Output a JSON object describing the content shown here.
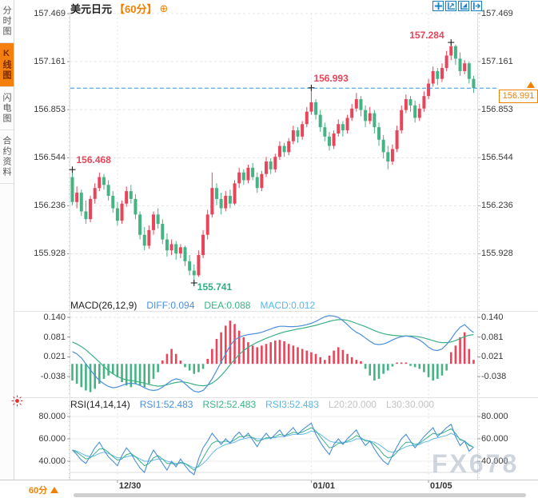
{
  "window": {
    "title": "美元日元 60分 K线图"
  },
  "sidebar": {
    "tabs": [
      {
        "label": "分时图",
        "active": false
      },
      {
        "label": "K线图",
        "active": true
      },
      {
        "label": "闪电图",
        "active": false
      },
      {
        "label": "合约资料",
        "active": false
      }
    ]
  },
  "header": {
    "symbol": "美元日元",
    "period": "【60分】",
    "plus_icon": "⊕"
  },
  "toolbar": {
    "icons": [
      "crosshair-move-icon",
      "axis-zoom-in-icon",
      "axis-zoom-out-icon",
      "pan-right-icon"
    ]
  },
  "colors": {
    "up": "#e8455a",
    "down": "#45b383",
    "diff_line": "#4a8fdb",
    "dea_line": "#3bb184",
    "rsi3_line": "#63b8e8",
    "accent_orange": "#f08000",
    "dashed_price_line": "#3d8de0"
  },
  "macd_header": {
    "title": "MACD(26,12,9)",
    "diff": "DIFF:0.094",
    "dea": "DEA:0.088",
    "macd": "MACD:0.012"
  },
  "rsi_header": {
    "title": "RSI(14,14,14)",
    "rsi1": "RSI1:52.483",
    "rsi2": "RSI2:52.483",
    "rsi3": "RSI3:52.483",
    "l20": "L20:20.000",
    "l30": "L30:30.000"
  },
  "x_axis": {
    "period_label": "60分"
  },
  "current_price_tag": "156.991",
  "watermark": "FX678",
  "chart_data": {
    "type": "candlestick",
    "symbol": "美元日元",
    "interval": "60分",
    "price_ticks": [
      "157.469",
      "157.161",
      "156.853",
      "156.544",
      "156.236",
      "155.928"
    ],
    "price_tick_values": [
      157.469,
      157.161,
      156.853,
      156.544,
      156.236,
      155.928
    ],
    "current_price": 156.991,
    "x_ticks": [
      {
        "label": "12/30",
        "index": 10
      },
      {
        "label": "01/01",
        "index": 53
      },
      {
        "label": "01/05",
        "index": 79
      }
    ],
    "annotations": [
      {
        "label": "156.468",
        "index": 0,
        "type": "high",
        "color": "#e8455a"
      },
      {
        "label": "155.741",
        "index": 27,
        "type": "low",
        "color": "#2fae81"
      },
      {
        "label": "156.993",
        "index": 53,
        "type": "high",
        "color": "#e8455a"
      },
      {
        "label": "157.284",
        "index": 84,
        "type": "high",
        "color": "#e8455a"
      }
    ],
    "candles": [
      [
        156.42,
        156.468,
        156.24,
        156.26
      ],
      [
        156.26,
        156.36,
        156.22,
        156.32
      ],
      [
        156.32,
        156.34,
        156.17,
        156.2
      ],
      [
        156.2,
        156.27,
        156.12,
        156.15
      ],
      [
        156.15,
        156.3,
        156.13,
        156.28
      ],
      [
        156.28,
        156.38,
        156.25,
        156.35
      ],
      [
        156.35,
        156.45,
        156.33,
        156.42
      ],
      [
        156.42,
        156.44,
        156.34,
        156.37
      ],
      [
        156.37,
        156.4,
        156.27,
        156.3
      ],
      [
        156.3,
        156.33,
        156.19,
        156.22
      ],
      [
        156.22,
        156.26,
        156.11,
        156.14
      ],
      [
        156.14,
        156.27,
        156.12,
        156.25
      ],
      [
        156.25,
        156.36,
        156.23,
        156.33
      ],
      [
        156.33,
        156.37,
        156.25,
        156.28
      ],
      [
        156.28,
        156.31,
        156.15,
        156.18
      ],
      [
        156.18,
        156.2,
        156.02,
        156.05
      ],
      [
        156.05,
        156.1,
        155.95,
        155.98
      ],
      [
        155.98,
        156.11,
        155.96,
        156.08
      ],
      [
        156.08,
        156.2,
        156.05,
        156.18
      ],
      [
        156.18,
        156.22,
        156.09,
        156.12
      ],
      [
        156.12,
        156.15,
        155.99,
        156.02
      ],
      [
        156.02,
        156.06,
        155.91,
        155.95
      ],
      [
        155.95,
        156.02,
        155.92,
        155.99
      ],
      [
        155.99,
        156.01,
        155.89,
        155.93
      ],
      [
        155.93,
        155.99,
        155.9,
        155.97
      ],
      [
        155.97,
        155.98,
        155.85,
        155.88
      ],
      [
        155.88,
        155.92,
        155.79,
        155.82
      ],
      [
        155.82,
        155.86,
        155.741,
        155.79
      ],
      [
        155.79,
        155.95,
        155.78,
        155.92
      ],
      [
        155.92,
        156.08,
        155.9,
        156.05
      ],
      [
        156.05,
        156.21,
        156.02,
        156.18
      ],
      [
        156.18,
        156.45,
        156.16,
        156.35
      ],
      [
        156.35,
        156.38,
        156.24,
        156.28
      ],
      [
        156.28,
        156.32,
        156.18,
        156.22
      ],
      [
        156.22,
        156.33,
        156.2,
        156.3
      ],
      [
        156.3,
        156.34,
        156.22,
        156.25
      ],
      [
        156.25,
        156.4,
        156.24,
        156.38
      ],
      [
        156.38,
        156.48,
        156.35,
        156.45
      ],
      [
        156.45,
        156.47,
        156.37,
        156.4
      ],
      [
        156.4,
        156.5,
        156.38,
        156.48
      ],
      [
        156.48,
        156.51,
        156.4,
        156.42
      ],
      [
        156.42,
        156.45,
        156.32,
        156.35
      ],
      [
        156.35,
        156.46,
        156.33,
        156.44
      ],
      [
        156.44,
        156.55,
        156.42,
        156.52
      ],
      [
        156.52,
        156.54,
        156.44,
        156.47
      ],
      [
        156.47,
        156.57,
        156.45,
        156.55
      ],
      [
        156.55,
        156.65,
        156.53,
        156.62
      ],
      [
        156.62,
        156.64,
        156.55,
        156.58
      ],
      [
        156.58,
        156.67,
        156.56,
        156.65
      ],
      [
        156.65,
        156.75,
        156.63,
        156.72
      ],
      [
        156.72,
        156.74,
        156.64,
        156.68
      ],
      [
        156.68,
        156.78,
        156.66,
        156.76
      ],
      [
        156.76,
        156.87,
        156.74,
        156.84
      ],
      [
        156.84,
        156.993,
        156.82,
        156.9
      ],
      [
        156.9,
        156.92,
        156.79,
        156.82
      ],
      [
        156.82,
        156.85,
        156.71,
        156.74
      ],
      [
        156.74,
        156.77,
        156.65,
        156.68
      ],
      [
        156.68,
        156.71,
        156.59,
        156.62
      ],
      [
        156.62,
        156.72,
        156.6,
        156.7
      ],
      [
        156.7,
        156.79,
        156.68,
        156.76
      ],
      [
        156.76,
        156.78,
        156.68,
        156.72
      ],
      [
        156.72,
        156.82,
        156.7,
        156.8
      ],
      [
        156.8,
        156.89,
        156.78,
        156.86
      ],
      [
        156.86,
        156.96,
        156.84,
        156.92
      ],
      [
        156.92,
        156.94,
        156.81,
        156.85
      ],
      [
        156.85,
        156.88,
        156.74,
        156.78
      ],
      [
        156.78,
        156.87,
        156.76,
        156.83
      ],
      [
        156.83,
        156.85,
        156.7,
        156.74
      ],
      [
        156.74,
        156.77,
        156.62,
        156.66
      ],
      [
        156.66,
        156.69,
        156.54,
        156.58
      ],
      [
        156.58,
        156.62,
        156.47,
        156.52
      ],
      [
        156.52,
        156.63,
        156.5,
        156.6
      ],
      [
        156.6,
        156.75,
        156.58,
        156.72
      ],
      [
        156.72,
        156.88,
        156.7,
        156.85
      ],
      [
        156.85,
        156.95,
        156.83,
        156.92
      ],
      [
        156.92,
        156.94,
        156.84,
        156.88
      ],
      [
        156.88,
        156.91,
        156.77,
        156.8
      ],
      [
        156.8,
        156.89,
        156.78,
        156.86
      ],
      [
        156.86,
        156.97,
        156.84,
        156.94
      ],
      [
        156.94,
        157.05,
        156.92,
        157.02
      ],
      [
        157.02,
        157.13,
        157.0,
        157.1
      ],
      [
        157.1,
        157.12,
        157.01,
        157.05
      ],
      [
        157.05,
        157.15,
        157.03,
        157.12
      ],
      [
        157.12,
        157.23,
        157.1,
        157.2
      ],
      [
        157.2,
        157.284,
        157.17,
        157.26
      ],
      [
        157.26,
        157.27,
        157.14,
        157.18
      ],
      [
        157.18,
        157.22,
        157.07,
        157.1
      ],
      [
        157.1,
        157.17,
        157.08,
        157.15
      ],
      [
        157.15,
        157.16,
        157.02,
        157.05
      ],
      [
        157.05,
        157.07,
        156.96,
        156.991
      ]
    ],
    "macd": {
      "axis_ticks": [
        "0.140",
        "0.081",
        "0.021",
        "-0.038"
      ],
      "axis_values": [
        0.14,
        0.081,
        0.021,
        -0.038
      ],
      "diff_value": 0.094,
      "dea_value": 0.088,
      "macd_value": 0.012,
      "hist": [
        -0.05,
        -0.06,
        -0.07,
        -0.08,
        -0.085,
        -0.075,
        -0.06,
        -0.045,
        -0.035,
        -0.03,
        -0.04,
        -0.055,
        -0.065,
        -0.07,
        -0.06,
        -0.065,
        -0.07,
        -0.06,
        -0.045,
        -0.025,
        0.01,
        0.03,
        0.045,
        0.03,
        0.01,
        -0.01,
        -0.02,
        -0.03,
        -0.025,
        -0.015,
        0.015,
        0.045,
        0.075,
        0.095,
        0.115,
        0.13,
        0.12,
        0.1,
        0.08,
        0.065,
        0.055,
        0.05,
        0.055,
        0.06,
        0.065,
        0.07,
        0.072,
        0.068,
        0.06,
        0.055,
        0.05,
        0.045,
        0.04,
        0.035,
        0.03,
        0.02,
        0.012,
        0.025,
        0.04,
        0.05,
        0.042,
        0.03,
        0.02,
        0.012,
        0.008,
        -0.015,
        -0.035,
        -0.05,
        -0.045,
        -0.03,
        -0.02,
        -0.008,
        0.004,
        0.004,
        0.004,
        -0.006,
        -0.01,
        -0.015,
        -0.025,
        -0.04,
        -0.05,
        -0.045,
        -0.035,
        -0.02,
        0.035,
        0.055,
        0.08,
        0.095,
        0.045,
        0.012
      ],
      "diff": [
        0.037,
        0.03,
        0.018,
        0.0,
        -0.018,
        -0.035,
        -0.05,
        -0.06,
        -0.068,
        -0.072,
        -0.07,
        -0.065,
        -0.06,
        -0.058,
        -0.06,
        -0.065,
        -0.072,
        -0.078,
        -0.08,
        -0.078,
        -0.07,
        -0.06,
        -0.05,
        -0.045,
        -0.048,
        -0.06,
        -0.072,
        -0.082,
        -0.085,
        -0.08,
        -0.065,
        -0.045,
        -0.02,
        0.005,
        0.03,
        0.055,
        0.072,
        0.08,
        0.085,
        0.088,
        0.09,
        0.092,
        0.095,
        0.1,
        0.105,
        0.11,
        0.113,
        0.113,
        0.112,
        0.112,
        0.113,
        0.115,
        0.118,
        0.122,
        0.128,
        0.135,
        0.142,
        0.145,
        0.144,
        0.14,
        0.13,
        0.118,
        0.105,
        0.095,
        0.088,
        0.078,
        0.068,
        0.06,
        0.058,
        0.06,
        0.065,
        0.072,
        0.078,
        0.082,
        0.084,
        0.082,
        0.078,
        0.072,
        0.062,
        0.05,
        0.042,
        0.04,
        0.045,
        0.058,
        0.075,
        0.095,
        0.11,
        0.118,
        0.105,
        0.094
      ],
      "dea": [
        0.066,
        0.06,
        0.052,
        0.042,
        0.03,
        0.018,
        0.005,
        -0.008,
        -0.02,
        -0.03,
        -0.038,
        -0.044,
        -0.048,
        -0.05,
        -0.052,
        -0.055,
        -0.058,
        -0.062,
        -0.065,
        -0.067,
        -0.066,
        -0.063,
        -0.059,
        -0.056,
        -0.054,
        -0.055,
        -0.058,
        -0.062,
        -0.065,
        -0.066,
        -0.064,
        -0.058,
        -0.048,
        -0.035,
        -0.02,
        -0.003,
        0.013,
        0.028,
        0.04,
        0.05,
        0.058,
        0.065,
        0.071,
        0.077,
        0.082,
        0.087,
        0.092,
        0.096,
        0.099,
        0.102,
        0.105,
        0.107,
        0.11,
        0.113,
        0.116,
        0.12,
        0.124,
        0.128,
        0.131,
        0.133,
        0.133,
        0.131,
        0.127,
        0.122,
        0.117,
        0.112,
        0.106,
        0.1,
        0.095,
        0.091,
        0.088,
        0.086,
        0.085,
        0.084,
        0.084,
        0.084,
        0.083,
        0.081,
        0.078,
        0.074,
        0.07,
        0.066,
        0.064,
        0.064,
        0.066,
        0.07,
        0.076,
        0.082,
        0.086,
        0.088
      ]
    },
    "rsi": {
      "axis_ticks": [
        "80.000",
        "60.000",
        "40.000"
      ],
      "axis_values": [
        80,
        60,
        40
      ],
      "rsi1_value": 52.483,
      "rsi2_value": 52.483,
      "rsi3_value": 52.483,
      "l20": 20.0,
      "l30": 30.0,
      "rsi1": [
        50,
        46,
        41,
        38,
        45,
        52,
        57,
        50,
        44,
        40,
        36,
        45,
        52,
        47,
        40,
        34,
        30,
        42,
        50,
        44,
        38,
        32,
        40,
        35,
        42,
        36,
        31,
        28,
        42,
        52,
        58,
        65,
        60,
        55,
        60,
        56,
        62,
        66,
        61,
        65,
        59,
        53,
        60,
        65,
        60,
        64,
        68,
        62,
        66,
        70,
        64,
        68,
        71,
        74,
        64,
        57,
        51,
        46,
        55,
        60,
        55,
        60,
        64,
        68,
        60,
        54,
        58,
        51,
        45,
        40,
        37,
        45,
        53,
        60,
        64,
        58,
        52,
        57,
        62,
        66,
        70,
        62,
        66,
        70,
        73,
        62,
        54,
        58,
        49,
        52.483
      ],
      "rsi2": [
        50,
        48,
        45,
        42,
        43,
        47,
        51,
        51,
        48,
        44,
        41,
        42,
        46,
        47,
        44,
        40,
        36,
        38,
        43,
        45,
        42,
        38,
        38,
        37,
        39,
        38,
        35,
        32,
        36,
        43,
        50,
        56,
        58,
        57,
        58,
        57,
        59,
        62,
        62,
        63,
        61,
        58,
        59,
        61,
        61,
        62,
        64,
        63,
        64,
        66,
        65,
        66,
        68,
        70,
        67,
        62,
        57,
        52,
        53,
        56,
        56,
        58,
        60,
        63,
        61,
        58,
        58,
        55,
        51,
        46,
        43,
        44,
        48,
        53,
        57,
        57,
        55,
        56,
        59,
        62,
        65,
        64,
        65,
        67,
        69,
        65,
        59,
        58,
        54,
        52.483
      ],
      "rsi3": [
        50,
        49,
        47,
        45,
        44,
        45,
        47,
        48,
        47,
        45,
        43,
        43,
        44,
        45,
        44,
        42,
        40,
        40,
        41,
        42,
        42,
        40,
        39,
        38,
        38,
        38,
        36,
        34,
        35,
        38,
        42,
        47,
        51,
        53,
        55,
        56,
        57,
        59,
        60,
        61,
        61,
        60,
        60,
        60,
        61,
        61,
        62,
        62,
        63,
        64,
        64,
        64,
        65,
        67,
        66,
        64,
        61,
        58,
        57,
        57,
        57,
        57,
        58,
        60,
        60,
        59,
        58,
        57,
        55,
        52,
        49,
        48,
        49,
        51,
        53,
        54,
        54,
        55,
        57,
        58,
        60,
        61,
        62,
        63,
        65,
        63,
        60,
        58,
        55,
        52.483
      ]
    }
  }
}
